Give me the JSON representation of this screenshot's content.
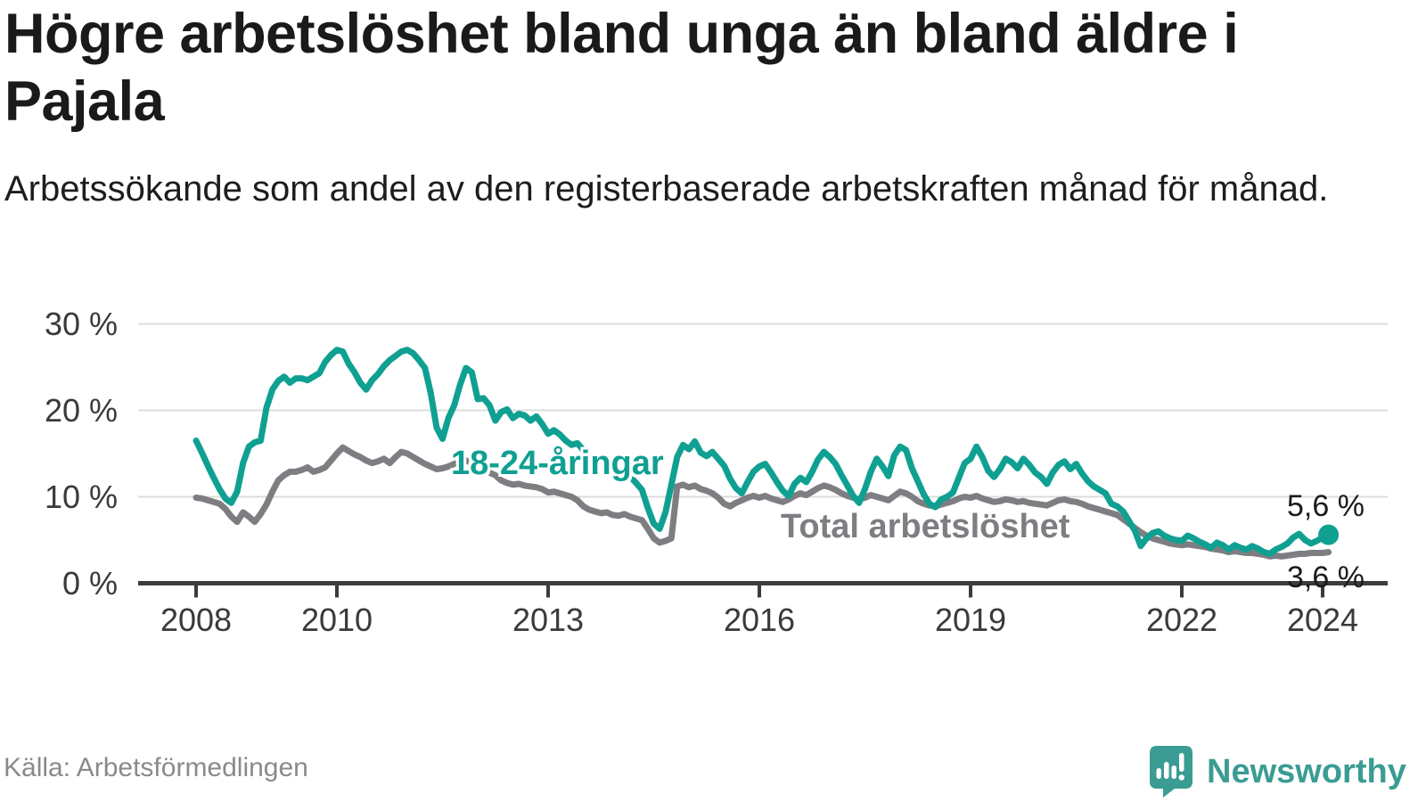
{
  "chart_data": {
    "type": "line",
    "title": "Högre arbetslöshet bland unga än bland äldre i Pajala",
    "subtitle": "Arbetssökande som andel av den registerbaserade arbetskraften månad för månad.",
    "xlabel": "",
    "ylabel": "",
    "ylim": [
      0,
      30
    ],
    "grid": "horizontal",
    "legend": "inline-labels",
    "x_start": "2008-01",
    "x_interval": "month",
    "x_ticks": [
      2008,
      2010,
      2013,
      2016,
      2019,
      2022,
      2024
    ],
    "y_ticks": [
      {
        "label": "0 %",
        "value": 0
      },
      {
        "label": "10 %",
        "value": 10
      },
      {
        "label": "20 %",
        "value": 20
      },
      {
        "label": "30 %",
        "value": 30
      }
    ],
    "series": [
      {
        "name": "18-24-åringar",
        "color": "#0fa092",
        "last_value_label": "5,6 %",
        "end_dot": true,
        "values": [
          16.5,
          15.1,
          13.6,
          12.2,
          10.9,
          9.8,
          9.3,
          10.6,
          13.9,
          15.8,
          16.3,
          16.5,
          20.3,
          22.4,
          23.4,
          23.9,
          23.2,
          23.7,
          23.7,
          23.5,
          23.9,
          24.3,
          25.6,
          26.4,
          27.0,
          26.8,
          25.4,
          24.4,
          23.2,
          22.4,
          23.5,
          24.2,
          25.1,
          25.8,
          26.3,
          26.8,
          27.0,
          26.6,
          25.8,
          24.9,
          22.0,
          18.0,
          16.7,
          19.1,
          20.6,
          23.0,
          24.9,
          24.4,
          21.3,
          21.4,
          20.6,
          18.8,
          19.8,
          20.1,
          19.1,
          19.6,
          19.4,
          18.8,
          19.3,
          18.4,
          17.3,
          17.7,
          17.2,
          16.5,
          16.0,
          16.2,
          15.4,
          14.7,
          14.2,
          14.5,
          13.8,
          13.1,
          12.8,
          13.0,
          12.3,
          11.6,
          10.8,
          8.7,
          6.9,
          6.3,
          8.2,
          11.4,
          14.6,
          16.0,
          15.5,
          16.4,
          15.1,
          14.7,
          15.2,
          14.4,
          13.6,
          12.1,
          11.0,
          10.4,
          11.7,
          12.9,
          13.5,
          13.8,
          12.8,
          11.7,
          10.7,
          10.1,
          11.5,
          12.2,
          11.7,
          12.9,
          14.3,
          15.2,
          14.6,
          13.8,
          12.5,
          11.3,
          10.1,
          9.3,
          10.9,
          12.9,
          14.4,
          13.5,
          12.4,
          14.8,
          15.8,
          15.4,
          13.3,
          11.8,
          10.3,
          9.2,
          8.8,
          9.7,
          10.0,
          10.5,
          12.2,
          13.9,
          14.4,
          15.8,
          14.6,
          13.0,
          12.3,
          13.2,
          14.4,
          14.0,
          13.3,
          14.4,
          13.7,
          12.8,
          12.3,
          11.5,
          12.8,
          13.7,
          14.1,
          13.2,
          13.8,
          12.7,
          11.8,
          11.2,
          10.8,
          10.4,
          9.2,
          8.9,
          8.3,
          7.2,
          6.1,
          4.3,
          5.2,
          5.8,
          6.0,
          5.5,
          5.2,
          5.0,
          4.9,
          5.5,
          5.2,
          4.8,
          4.5,
          4.1,
          4.7,
          4.4,
          3.9,
          4.4,
          4.1,
          3.9,
          4.3,
          4.0,
          3.6,
          3.4,
          3.9,
          4.2,
          4.6,
          5.3,
          5.7,
          5.0,
          4.6,
          4.9,
          5.3,
          5.6
        ]
      },
      {
        "name": "Total arbetslöshet",
        "color": "#7e7e82",
        "last_value_label": "3,6 %",
        "end_dot": false,
        "values": [
          9.9,
          9.8,
          9.6,
          9.4,
          9.2,
          8.6,
          7.7,
          7.1,
          8.2,
          7.7,
          7.1,
          8.0,
          9.1,
          10.6,
          11.9,
          12.5,
          12.9,
          12.9,
          13.1,
          13.4,
          12.9,
          13.1,
          13.4,
          14.2,
          15.0,
          15.7,
          15.3,
          14.9,
          14.6,
          14.2,
          13.9,
          14.1,
          14.4,
          13.9,
          14.6,
          15.2,
          15.0,
          14.6,
          14.2,
          13.8,
          13.5,
          13.2,
          13.3,
          13.5,
          13.8,
          14.0,
          14.2,
          13.9,
          13.4,
          13.2,
          12.8,
          12.5,
          11.9,
          11.6,
          11.4,
          11.5,
          11.3,
          11.2,
          11.1,
          10.9,
          10.5,
          10.6,
          10.4,
          10.2,
          10.0,
          9.6,
          8.9,
          8.5,
          8.3,
          8.1,
          8.2,
          7.9,
          7.8,
          8.0,
          7.7,
          7.5,
          7.3,
          6.3,
          5.2,
          4.7,
          4.9,
          5.2,
          11.2,
          11.4,
          11.1,
          11.3,
          10.9,
          10.7,
          10.4,
          9.9,
          9.2,
          8.9,
          9.3,
          9.6,
          9.9,
          10.1,
          9.9,
          10.1,
          9.8,
          9.6,
          9.4,
          9.7,
          10.1,
          10.4,
          10.2,
          10.6,
          11.0,
          11.3,
          11.1,
          10.8,
          10.4,
          10.1,
          9.9,
          9.7,
          9.9,
          10.2,
          10.0,
          9.8,
          9.6,
          10.1,
          10.6,
          10.4,
          10.0,
          9.5,
          9.2,
          9.0,
          8.9,
          9.1,
          9.3,
          9.5,
          9.8,
          10.0,
          9.9,
          10.1,
          9.8,
          9.6,
          9.4,
          9.5,
          9.7,
          9.6,
          9.4,
          9.5,
          9.3,
          9.2,
          9.1,
          9.0,
          9.3,
          9.6,
          9.7,
          9.5,
          9.4,
          9.2,
          8.9,
          8.7,
          8.5,
          8.3,
          8.1,
          7.9,
          7.4,
          6.9,
          6.4,
          5.9,
          5.5,
          5.2,
          5.0,
          4.8,
          4.6,
          4.5,
          4.4,
          4.5,
          4.4,
          4.3,
          4.2,
          4.0,
          3.9,
          3.8,
          3.6,
          3.7,
          3.6,
          3.5,
          3.5,
          3.4,
          3.3,
          3.1,
          3.2,
          3.1,
          3.2,
          3.3,
          3.4,
          3.4,
          3.5,
          3.5,
          3.5,
          3.6
        ]
      }
    ]
  },
  "footer": {
    "source": "Källa: Arbetsförmedlingen",
    "brand": "Newsworthy"
  },
  "colors": {
    "accent_teal": "#0fa092",
    "neutral_gray": "#7e7e82",
    "grid": "#dcdcdc",
    "axis": "#3c3c3e",
    "logo_teal": "#3a9c93"
  }
}
